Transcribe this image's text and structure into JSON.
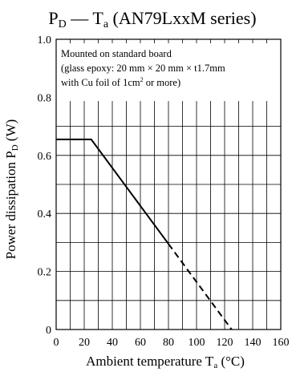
{
  "chart_data": {
    "type": "line",
    "title": {
      "main": "P",
      "main_sub": "D",
      "middle": " — T",
      "middle_sub": "a",
      "end": " (AN79LxxM series)"
    },
    "xlabel": {
      "main": "Ambient temperature  T",
      "sub": "a",
      "unit": "  (°C)"
    },
    "ylabel": {
      "main": "Power dissipation  P",
      "sub": "D",
      "unit": "  (W)"
    },
    "xlim": [
      0,
      160
    ],
    "ylim": [
      0,
      1.0
    ],
    "x_ticks": [
      0,
      20,
      40,
      60,
      80,
      100,
      120,
      140,
      160
    ],
    "x_tick_labels": [
      "0",
      "20",
      "40",
      "60",
      "80",
      "100",
      "120",
      "140",
      "160"
    ],
    "y_ticks": [
      0,
      0.2,
      0.4,
      0.6,
      0.8,
      1.0
    ],
    "y_tick_labels": [
      "0",
      "0.2",
      "0.4",
      "0.6",
      "0.8",
      "1.0"
    ],
    "x_grid_step": 10,
    "y_grid_step": 0.1,
    "grid": true,
    "series": [
      {
        "style": "solid",
        "x": [
          0,
          25,
          80
        ],
        "y": [
          0.655,
          0.655,
          0.295
        ]
      },
      {
        "style": "dashed",
        "x": [
          80,
          125
        ],
        "y": [
          0.295,
          0
        ]
      }
    ],
    "annotation": {
      "line1": "Mounted on standard board",
      "line2": "(glass epoxy: 20 mm × 20 mm × t1.7mm",
      "line3_pre": "with Cu foil of 1cm",
      "line3_sup": "2",
      "line3_post": " or more)"
    }
  }
}
